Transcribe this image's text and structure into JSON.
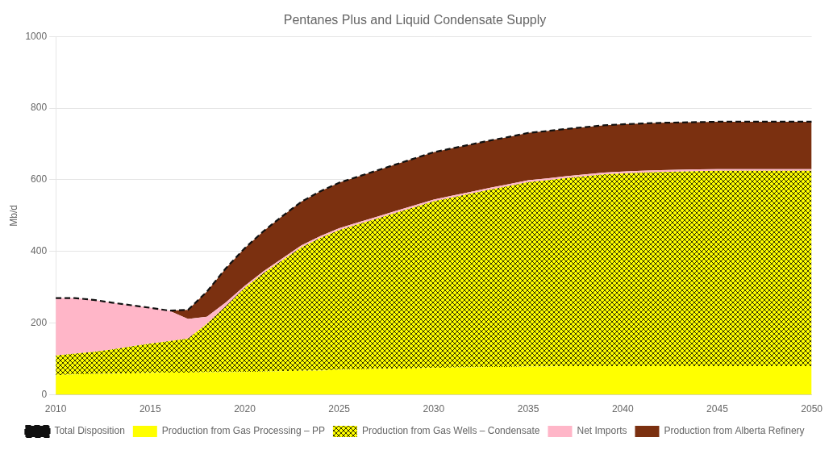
{
  "chart_data": {
    "type": "area",
    "title": "Pentanes Plus and Liquid Condensate Supply",
    "ylabel": "Mb/d",
    "x": [
      2010,
      2011,
      2012,
      2013,
      2014,
      2015,
      2016,
      2017,
      2018,
      2019,
      2020,
      2021,
      2022,
      2023,
      2024,
      2025,
      2026,
      2027,
      2028,
      2029,
      2030,
      2031,
      2032,
      2033,
      2034,
      2035,
      2036,
      2037,
      2038,
      2039,
      2040,
      2041,
      2042,
      2043,
      2044,
      2045,
      2046,
      2047,
      2048,
      2049,
      2050
    ],
    "series": [
      {
        "name": "Production from Gas Processing – PP",
        "type": "area",
        "color": "#FFFF00",
        "values": [
          55,
          57,
          58,
          59,
          60,
          61,
          62,
          62,
          63,
          63,
          64,
          65,
          66,
          67,
          68,
          70,
          71,
          72,
          73,
          74,
          75,
          76,
          77,
          78,
          78,
          79,
          79,
          80,
          80,
          80,
          80,
          80,
          80,
          80,
          80,
          80,
          80,
          80,
          80,
          80,
          80
        ]
      },
      {
        "name": "Production from Gas Wells – Condensate",
        "type": "area",
        "color": "#FFFF00",
        "values": [
          55,
          58,
          62,
          68,
          75,
          82,
          88,
          95,
          135,
          185,
          235,
          275,
          310,
          345,
          370,
          390,
          405,
          420,
          435,
          450,
          465,
          475,
          485,
          495,
          505,
          515,
          520,
          525,
          530,
          535,
          538,
          540,
          542,
          543,
          544,
          545,
          545,
          545,
          545,
          545,
          545
        ]
      },
      {
        "name": "Net Imports",
        "type": "area",
        "color": "#FFB6C8",
        "values": [
          160,
          155,
          145,
          130,
          115,
          100,
          85,
          55,
          20,
          10,
          5,
          5,
          5,
          5,
          5,
          5,
          5,
          5,
          5,
          5,
          5,
          5,
          5,
          5,
          5,
          5,
          5,
          5,
          5,
          5,
          5,
          5,
          5,
          5,
          5,
          5,
          5,
          5,
          5,
          5,
          5
        ]
      },
      {
        "name": "Production from Alberta Refinery",
        "type": "area",
        "color": "#7B3010",
        "values": [
          0,
          0,
          0,
          0,
          0,
          0,
          0,
          25,
          70,
          95,
          105,
          112,
          118,
          122,
          125,
          127,
          128,
          129,
          130,
          131,
          132,
          132,
          132,
          132,
          132,
          132,
          132,
          132,
          132,
          132,
          132,
          132,
          132,
          132,
          132,
          132,
          132,
          132,
          132,
          132,
          132
        ]
      },
      {
        "name": "Total Disposition",
        "type": "line",
        "color": "#111111",
        "line_style": "dashed",
        "values": [
          270,
          270,
          265,
          257,
          250,
          243,
          235,
          237,
          288,
          353,
          409,
          457,
          499,
          539,
          568,
          592,
          609,
          626,
          643,
          660,
          677,
          688,
          699,
          710,
          720,
          731,
          736,
          742,
          747,
          752,
          755,
          757,
          759,
          760,
          761,
          762,
          762,
          762,
          762,
          762,
          762
        ]
      }
    ],
    "xlim": [
      2010,
      2050
    ],
    "xticks": [
      2010,
      2015,
      2020,
      2025,
      2030,
      2035,
      2040,
      2045,
      2050
    ],
    "ylim": [
      0,
      1000
    ],
    "yticks": [
      0,
      200,
      400,
      600,
      800,
      1000
    ],
    "stacked": true,
    "grid": "y",
    "legend": "bottom"
  }
}
